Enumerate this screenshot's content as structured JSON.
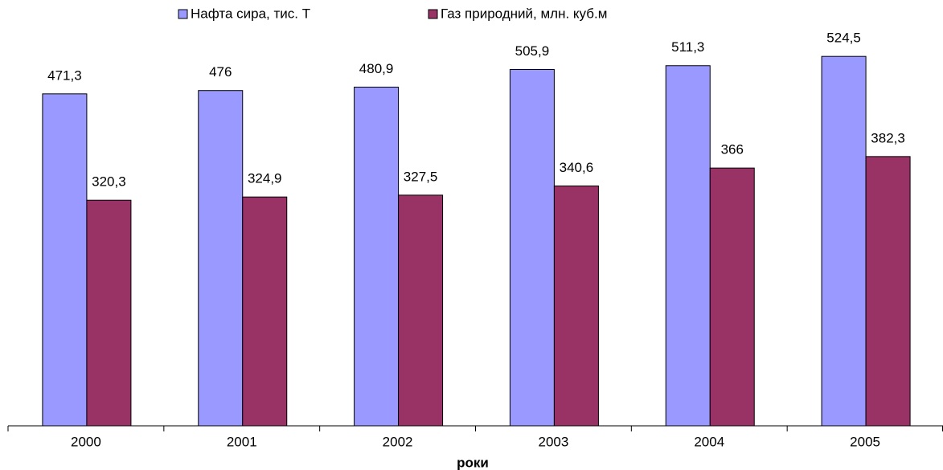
{
  "chart_data": {
    "type": "bar",
    "categories": [
      "2000",
      "2001",
      "2002",
      "2003",
      "2004",
      "2005"
    ],
    "x_label": "роки",
    "series": [
      {
        "name": "Нафта сира, тис. Т",
        "color": "#9999ff",
        "values": [
          471.3,
          476,
          480.9,
          505.9,
          511.3,
          524.5
        ],
        "value_labels": [
          "471,3",
          "476",
          "480,9",
          "505,9",
          "511,3",
          "524,5"
        ]
      },
      {
        "name": "Газ природний, млн. куб.м",
        "color": "#993366",
        "values": [
          320.3,
          324.9,
          327.5,
          340.6,
          366,
          382.3
        ],
        "value_labels": [
          "320,3",
          "324,9",
          "327,5",
          "340,6",
          "366",
          "382,3"
        ]
      }
    ],
    "ylim": [
      0,
      600
    ],
    "legend": "top",
    "grid": false
  }
}
